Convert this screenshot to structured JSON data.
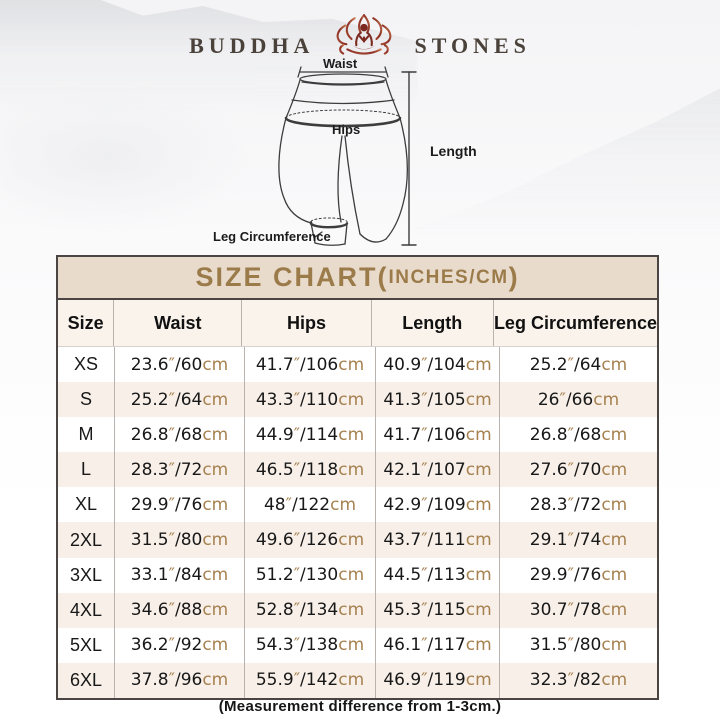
{
  "logo": {
    "left": "BUDDHA",
    "right": "STONES",
    "icon": "lotus-meditation-icon"
  },
  "diagram": {
    "labels": {
      "waist": "Waist",
      "hips": "Hips",
      "length": "Length",
      "leg_circumference": "Leg Circumference"
    }
  },
  "table": {
    "title_main": "SIZE CHART(",
    "title_inner": "INCHES/CM",
    "title_close": ")",
    "columns": [
      "Size",
      "Waist",
      "Hips",
      "Length",
      "Leg Circumference"
    ],
    "measurement_keys": [
      "waist",
      "hips",
      "length",
      "leg_circumference"
    ],
    "units": {
      "inch_mark": "″",
      "separator": "/",
      "cm_label": "cm"
    },
    "rows": [
      {
        "size": "XS",
        "waist": {
          "in": "23.6",
          "cm": "60"
        },
        "hips": {
          "in": "41.7",
          "cm": "106"
        },
        "length": {
          "in": "40.9",
          "cm": "104"
        },
        "leg_circumference": {
          "in": "25.2",
          "cm": "64"
        }
      },
      {
        "size": "S",
        "waist": {
          "in": "25.2",
          "cm": "64"
        },
        "hips": {
          "in": "43.3",
          "cm": "110"
        },
        "length": {
          "in": "41.3",
          "cm": "105"
        },
        "leg_circumference": {
          "in": "26",
          "cm": "66"
        }
      },
      {
        "size": "M",
        "waist": {
          "in": "26.8",
          "cm": "68"
        },
        "hips": {
          "in": "44.9",
          "cm": "114"
        },
        "length": {
          "in": "41.7",
          "cm": "106"
        },
        "leg_circumference": {
          "in": "26.8",
          "cm": "68"
        }
      },
      {
        "size": "L",
        "waist": {
          "in": "28.3",
          "cm": "72"
        },
        "hips": {
          "in": "46.5",
          "cm": "118"
        },
        "length": {
          "in": "42.1",
          "cm": "107"
        },
        "leg_circumference": {
          "in": "27.6",
          "cm": "70"
        }
      },
      {
        "size": "XL",
        "waist": {
          "in": "29.9",
          "cm": "76"
        },
        "hips": {
          "in": "48",
          "cm": "122"
        },
        "length": {
          "in": "42.9",
          "cm": "109"
        },
        "leg_circumference": {
          "in": "28.3",
          "cm": "72"
        }
      },
      {
        "size": "2XL",
        "waist": {
          "in": "31.5",
          "cm": "80"
        },
        "hips": {
          "in": "49.6",
          "cm": "126"
        },
        "length": {
          "in": "43.7",
          "cm": "111"
        },
        "leg_circumference": {
          "in": "29.1",
          "cm": "74"
        }
      },
      {
        "size": "3XL",
        "waist": {
          "in": "33.1",
          "cm": "84"
        },
        "hips": {
          "in": "51.2",
          "cm": "130"
        },
        "length": {
          "in": "44.5",
          "cm": "113"
        },
        "leg_circumference": {
          "in": "29.9",
          "cm": "76"
        }
      },
      {
        "size": "4XL",
        "waist": {
          "in": "34.6",
          "cm": "88"
        },
        "hips": {
          "in": "52.8",
          "cm": "134"
        },
        "length": {
          "in": "45.3",
          "cm": "115"
        },
        "leg_circumference": {
          "in": "30.7",
          "cm": "78"
        }
      },
      {
        "size": "5XL",
        "waist": {
          "in": "36.2",
          "cm": "92"
        },
        "hips": {
          "in": "54.3",
          "cm": "138"
        },
        "length": {
          "in": "46.1",
          "cm": "117"
        },
        "leg_circumference": {
          "in": "31.5",
          "cm": "80"
        }
      },
      {
        "size": "6XL",
        "waist": {
          "in": "37.8",
          "cm": "96"
        },
        "hips": {
          "in": "55.9",
          "cm": "142"
        },
        "length": {
          "in": "46.9",
          "cm": "119"
        },
        "leg_circumference": {
          "in": "32.3",
          "cm": "82"
        }
      }
    ]
  },
  "footer": {
    "note": "(Measurement difference from 1-3cm.)"
  },
  "colors": {
    "title_gold": "#9c7b4b",
    "unit_tan": "#a6814f",
    "header_band_bg": "#e9dbcc",
    "header_row_bg": "#faf3ec",
    "row_stripe_bg": "#f7efe8",
    "table_border": "#4a4542",
    "cell_divider": "#b8b3ae",
    "lotus_maroon": "#7c2a21",
    "lotus_light": "#c97a52",
    "text_dark": "#181818"
  }
}
